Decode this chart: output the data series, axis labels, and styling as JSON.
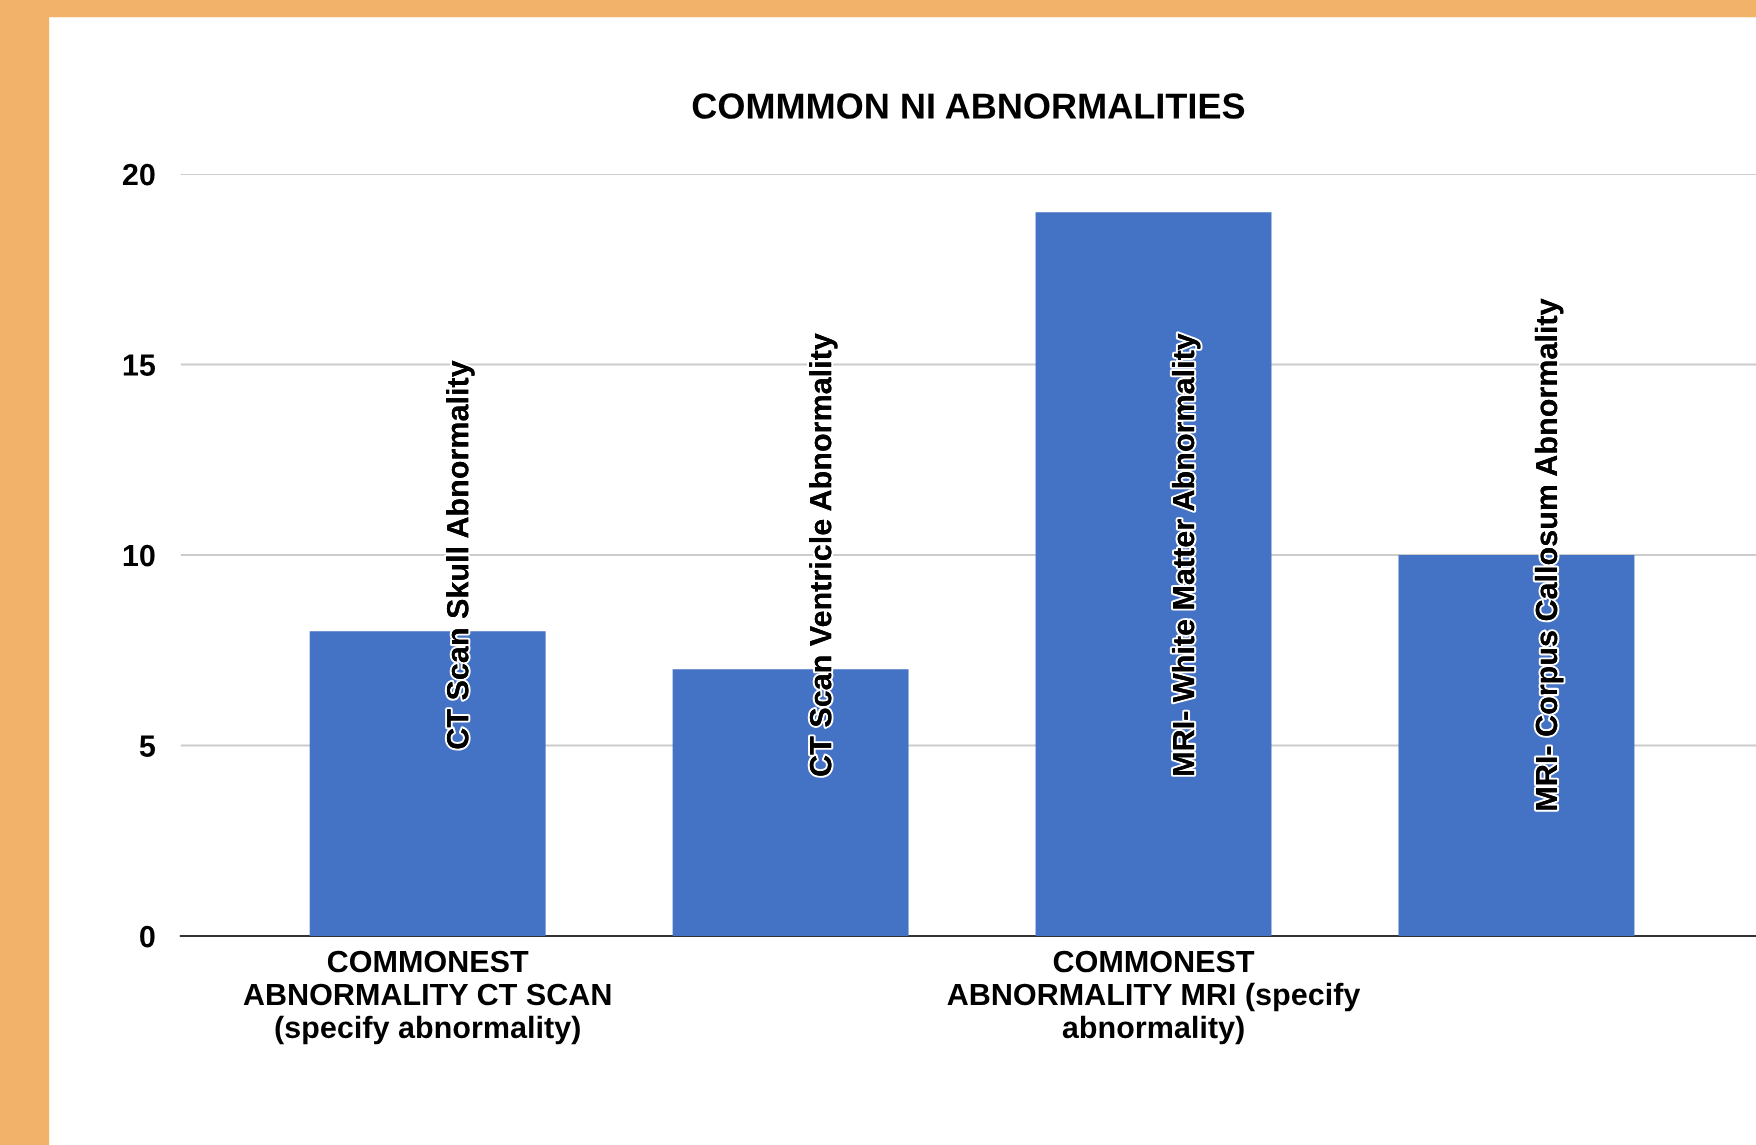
{
  "chart_data": {
    "type": "bar",
    "title": "COMMMON NI ABNORMALITIES",
    "categories": [
      "COMMONEST ABNORMALITY CT SCAN (specify abnormality)",
      null,
      "COMMONEST ABNORMALITY MRI (specify abnormality)",
      null
    ],
    "values": [
      8,
      7,
      19,
      10
    ],
    "value_labels": [
      "CT Scan Skull Abnormality",
      "CT Scan Ventricle Abnormality",
      "MRI- White Matter Abnormality",
      "MRI- Corpus Callosum Abnormality"
    ],
    "color": "#4472c4",
    "ylim": [
      0,
      20
    ],
    "yticks": [
      0,
      5,
      10,
      15,
      20
    ],
    "grid": "y"
  }
}
